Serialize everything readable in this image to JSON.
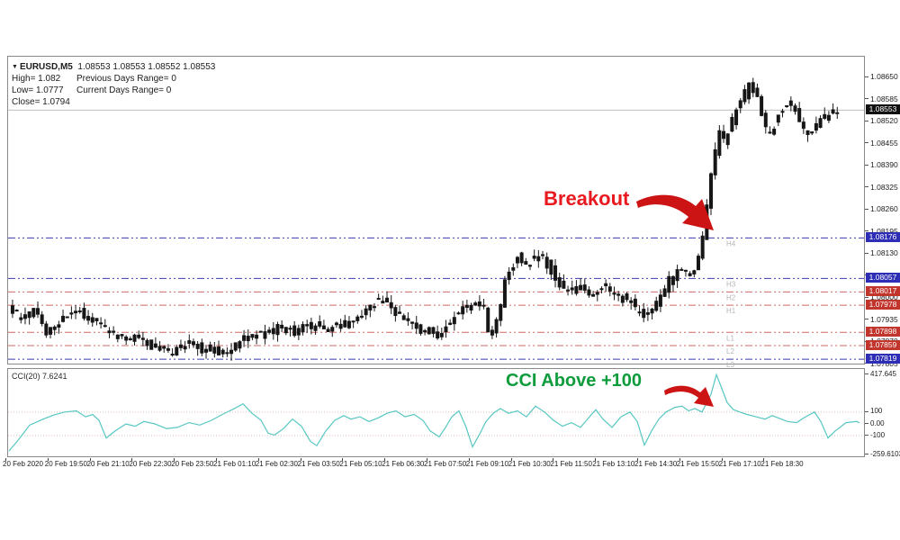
{
  "window": {
    "info": {
      "dropdown_icon": "▼",
      "symbol": "EURUSD,M5",
      "ohlc": "1.08553 1.08553 1.08552 1.08553",
      "high": "High= 1.082",
      "prev_range": "Previous Days Range= 0",
      "low": "Low= 1.0777",
      "cur_range": "Current Days Range= 0",
      "close": "Close= 1.0794"
    }
  },
  "annotations": {
    "breakout": {
      "text": "Breakout",
      "color": "#e8191f"
    },
    "cci_above": {
      "text": "CCI Above +100",
      "color": "#0e9c3c"
    },
    "arrow_color": "#cc1414"
  },
  "colors": {
    "candle": "#161616",
    "frame_border": "#8a8a8a",
    "current_price_line": "#a8a8a8",
    "current_price_badge_bg": "#101010",
    "blue_level": "#3a3ab0",
    "blue_badge_bg": "#2d2db5",
    "red_level": "#cf6a65",
    "red_badge_bg": "#c2352c",
    "badge_text": "#ffffff",
    "level_label": "#b5b5b5",
    "cci_line": "#57c7c2",
    "cci_grid": "#d8c3b6",
    "axis_text": "#1c1c1c"
  },
  "chart_data": {
    "type": "candlestick",
    "title": "EURUSD,M5",
    "price_axis": {
      "max": 1.0871,
      "min": 1.07806,
      "ticks": [
        "1.08650",
        "1.08585",
        "1.08520",
        "1.08455",
        "1.08390",
        "1.08325",
        "1.08260",
        "1.08195",
        "1.08130",
        "1.08065",
        "1.08000",
        "1.07935",
        "1.07870",
        "1.07805"
      ]
    },
    "current_price": {
      "label": "1.08553",
      "value": 1.08553
    },
    "levels": [
      {
        "name": "H4",
        "label": "1.08176",
        "price": 1.08176,
        "color": "blue"
      },
      {
        "name": "H3",
        "label": "1.08057",
        "price": 1.08057,
        "color": "blue"
      },
      {
        "name": "H2",
        "label": "1.08017",
        "price": 1.08017,
        "color": "red"
      },
      {
        "name": "H1",
        "label": "1.07978",
        "price": 1.07978,
        "color": "red"
      },
      {
        "name": "L1",
        "label": "1.07898",
        "price": 1.07898,
        "color": "red"
      },
      {
        "name": "L2",
        "label": "1.07859",
        "price": 1.07859,
        "color": "red"
      },
      {
        "name": "L3",
        "label": "1.07819",
        "price": 1.07819,
        "color": "blue"
      }
    ],
    "time_labels": [
      "20 Feb 2020",
      "20 Feb 19:50",
      "20 Feb 21:10",
      "20 Feb 22:30",
      "20 Feb 23:50",
      "21 Feb 01:10",
      "21 Feb 02:30",
      "21 Feb 03:50",
      "21 Feb 05:10",
      "21 Feb 06:30",
      "21 Feb 07:50",
      "21 Feb 09:10",
      "21 Feb 10:30",
      "21 Feb 11:50",
      "21 Feb 13:10",
      "21 Feb 14:30",
      "21 Feb 15:50",
      "21 Feb 17:10",
      "21 Feb 18:30"
    ],
    "price_path": [
      [
        1,
        1.0798
      ],
      [
        16,
        1.0794
      ],
      [
        31,
        1.0796
      ],
      [
        46,
        1.0789
      ],
      [
        61,
        1.0794
      ],
      [
        81,
        1.0796
      ],
      [
        101,
        1.0792
      ],
      [
        121,
        1.0789
      ],
      [
        141,
        1.0788
      ],
      [
        161,
        1.0786
      ],
      [
        181,
        1.0784
      ],
      [
        201,
        1.0786
      ],
      [
        221,
        1.0785
      ],
      [
        241,
        1.0784
      ],
      [
        261,
        1.0787
      ],
      [
        281,
        1.0789
      ],
      [
        301,
        1.0791
      ],
      [
        321,
        1.079
      ],
      [
        341,
        1.0792
      ],
      [
        361,
        1.0791
      ],
      [
        381,
        1.0793
      ],
      [
        401,
        1.0797
      ],
      [
        416,
        1.0799
      ],
      [
        431,
        1.0796
      ],
      [
        446,
        1.0793
      ],
      [
        461,
        1.0791
      ],
      [
        476,
        1.0789
      ],
      [
        491,
        1.0792
      ],
      [
        506,
        1.0797
      ],
      [
        521,
        1.0799
      ],
      [
        531,
        1.0797
      ],
      [
        538,
        1.0786
      ],
      [
        546,
        1.0793
      ],
      [
        556,
        1.0806
      ],
      [
        569,
        1.0812
      ],
      [
        581,
        1.081
      ],
      [
        596,
        1.0812
      ],
      [
        609,
        1.0807
      ],
      [
        621,
        1.0801
      ],
      [
        636,
        1.0803
      ],
      [
        651,
        1.08
      ],
      [
        663,
        1.0803
      ],
      [
        676,
        1.08
      ],
      [
        691,
        1.08
      ],
      [
        703,
        1.0796
      ],
      [
        713,
        1.0794
      ],
      [
        726,
        1.08
      ],
      [
        739,
        1.0806
      ],
      [
        749,
        1.0808
      ],
      [
        759,
        1.0806
      ],
      [
        766,
        1.0809
      ],
      [
        773,
        1.0816
      ],
      [
        779,
        1.0826
      ],
      [
        784,
        1.0838
      ],
      [
        789,
        1.0843
      ],
      [
        794,
        1.0849
      ],
      [
        799,
        1.0845
      ],
      [
        806,
        1.0851
      ],
      [
        813,
        1.0856
      ],
      [
        821,
        1.086
      ],
      [
        829,
        1.0863
      ],
      [
        836,
        1.0858
      ],
      [
        843,
        1.085
      ],
      [
        849,
        1.0848
      ],
      [
        856,
        1.0852
      ],
      [
        863,
        1.0856
      ],
      [
        871,
        1.0858
      ],
      [
        879,
        1.0854
      ],
      [
        886,
        1.085
      ],
      [
        894,
        1.0849
      ],
      [
        903,
        1.0852
      ],
      [
        911,
        1.0854
      ],
      [
        921,
        1.08553
      ]
    ],
    "cci": {
      "header": "CCI(20) 7.6241",
      "axis": {
        "max": 465,
        "min": -275,
        "ticks": [
          {
            "label": "417.645",
            "v": 417.645
          },
          {
            "label": "100",
            "v": 100
          },
          {
            "label": "0.00",
            "v": 0
          },
          {
            "label": "-100",
            "v": -100
          },
          {
            "label": "-259.6103",
            "v": -259.6103
          }
        ],
        "gridlines": [
          100,
          -100
        ]
      },
      "points": [
        [
          1,
          -230
        ],
        [
          11,
          -140
        ],
        [
          24,
          -10
        ],
        [
          39,
          40
        ],
        [
          51,
          75
        ],
        [
          63,
          100
        ],
        [
          76,
          110
        ],
        [
          86,
          60
        ],
        [
          94,
          80
        ],
        [
          101,
          30
        ],
        [
          109,
          -120
        ],
        [
          119,
          -60
        ],
        [
          131,
          0
        ],
        [
          141,
          -20
        ],
        [
          151,
          20
        ],
        [
          163,
          0
        ],
        [
          176,
          -40
        ],
        [
          188,
          -30
        ],
        [
          201,
          10
        ],
        [
          213,
          -10
        ],
        [
          226,
          30
        ],
        [
          238,
          80
        ],
        [
          249,
          120
        ],
        [
          261,
          170
        ],
        [
          271,
          90
        ],
        [
          281,
          30
        ],
        [
          289,
          -80
        ],
        [
          296,
          -95
        ],
        [
          306,
          -40
        ],
        [
          316,
          40
        ],
        [
          326,
          -20
        ],
        [
          336,
          -150
        ],
        [
          343,
          -185
        ],
        [
          353,
          -60
        ],
        [
          363,
          30
        ],
        [
          373,
          70
        ],
        [
          381,
          40
        ],
        [
          391,
          60
        ],
        [
          401,
          20
        ],
        [
          411,
          50
        ],
        [
          421,
          90
        ],
        [
          431,
          110
        ],
        [
          441,
          60
        ],
        [
          451,
          80
        ],
        [
          461,
          30
        ],
        [
          469,
          -60
        ],
        [
          479,
          -110
        ],
        [
          486,
          -30
        ],
        [
          493,
          60
        ],
        [
          501,
          110
        ],
        [
          509,
          -30
        ],
        [
          516,
          -195
        ],
        [
          523,
          -100
        ],
        [
          531,
          20
        ],
        [
          539,
          90
        ],
        [
          547,
          130
        ],
        [
          556,
          90
        ],
        [
          566,
          110
        ],
        [
          576,
          60
        ],
        [
          586,
          150
        ],
        [
          596,
          100
        ],
        [
          606,
          30
        ],
        [
          616,
          -20
        ],
        [
          626,
          10
        ],
        [
          636,
          -30
        ],
        [
          646,
          60
        ],
        [
          653,
          120
        ],
        [
          661,
          40
        ],
        [
          671,
          -30
        ],
        [
          681,
          60
        ],
        [
          691,
          100
        ],
        [
          699,
          20
        ],
        [
          707,
          -180
        ],
        [
          715,
          -60
        ],
        [
          723,
          40
        ],
        [
          731,
          100
        ],
        [
          741,
          140
        ],
        [
          749,
          150
        ],
        [
          756,
          110
        ],
        [
          763,
          130
        ],
        [
          771,
          100
        ],
        [
          781,
          250
        ],
        [
          787,
          417
        ],
        [
          793,
          300
        ],
        [
          799,
          180
        ],
        [
          806,
          120
        ],
        [
          813,
          100
        ],
        [
          821,
          80
        ],
        [
          831,
          60
        ],
        [
          841,
          40
        ],
        [
          849,
          70
        ],
        [
          856,
          50
        ],
        [
          866,
          20
        ],
        [
          876,
          10
        ],
        [
          886,
          60
        ],
        [
          896,
          100
        ],
        [
          903,
          20
        ],
        [
          911,
          -120
        ],
        [
          919,
          -60
        ],
        [
          931,
          10
        ],
        [
          943,
          20
        ],
        [
          946,
          8
        ]
      ]
    }
  }
}
